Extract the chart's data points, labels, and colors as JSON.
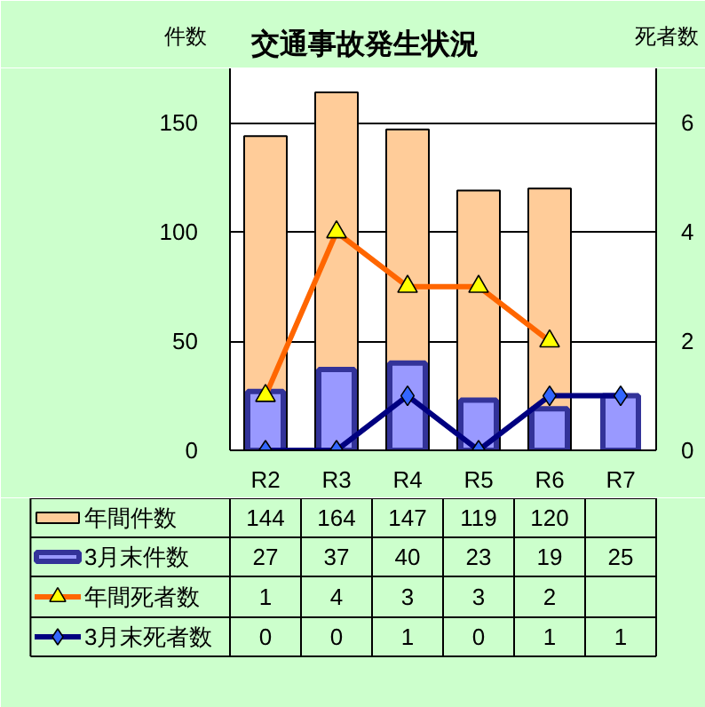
{
  "chart_data": {
    "type": "bar",
    "title": "交通事故発生状況",
    "ylabel": "件数",
    "y2label": "死者数",
    "categories": [
      "R2",
      "R3",
      "R4",
      "R5",
      "R6",
      "R7"
    ],
    "series": [
      {
        "name": "年間件数",
        "color": "#ffcc99",
        "values": [
          144,
          164,
          147,
          119,
          120,
          null
        ]
      },
      {
        "name": "3月末件数",
        "color": "#9999ff",
        "values": [
          27,
          37,
          40,
          23,
          19,
          25
        ]
      },
      {
        "name": "年間死者数",
        "type": "line",
        "axis": "y2",
        "color": "#ff6600",
        "marker": "triangle",
        "values": [
          1,
          4,
          3,
          3,
          2,
          null
        ]
      },
      {
        "name": "3月末死者数",
        "type": "line",
        "axis": "y2",
        "color": "#000080",
        "marker": "diamond",
        "values": [
          0,
          0,
          1,
          0,
          1,
          1
        ]
      }
    ],
    "ylim": [
      0,
      175
    ],
    "yticks": [
      0,
      50,
      100,
      150
    ],
    "y2lim": [
      0,
      7
    ],
    "y2ticks": [
      0,
      2,
      4,
      6
    ],
    "grid": "y",
    "legend": "bottom",
    "data_labels": true
  }
}
